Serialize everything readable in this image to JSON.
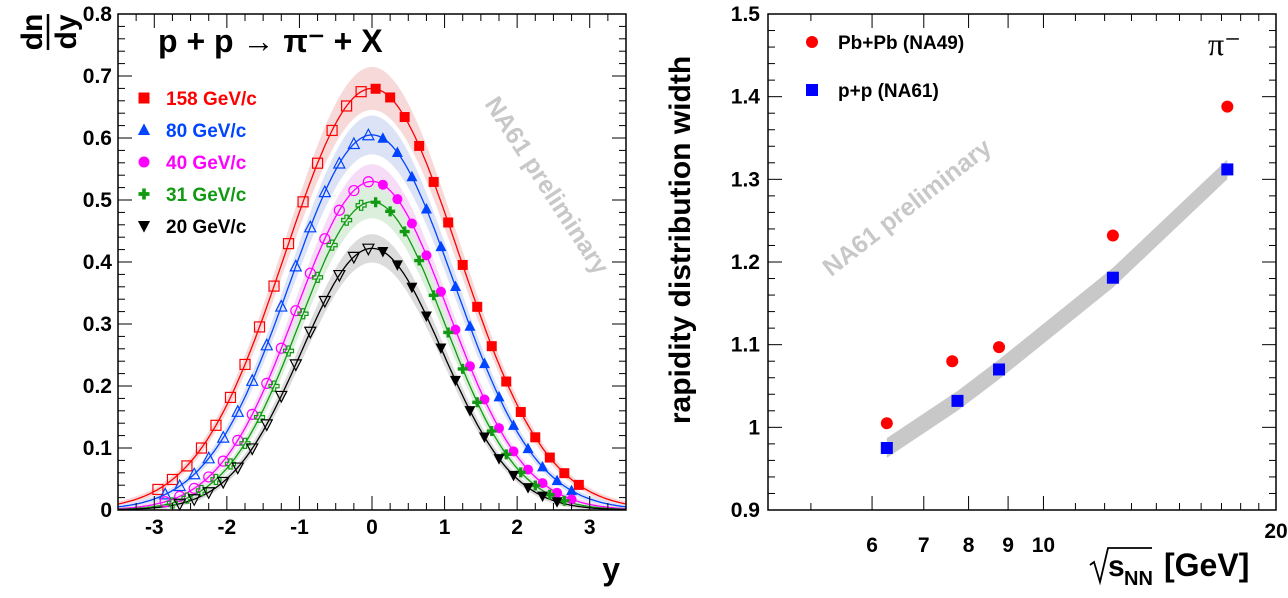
{
  "chart_data": [
    {
      "type": "line",
      "title": "p + p → π⁻ + X",
      "xlabel": "y",
      "ylabel": "dn/dy",
      "ylabel_num": "dn",
      "ylabel_den": "dy",
      "xlim": [
        -3.5,
        3.5
      ],
      "ylim": [
        0,
        0.8
      ],
      "x_ticks": [
        -3,
        -2,
        -1,
        0,
        1,
        2,
        3
      ],
      "y_ticks": [
        0,
        0.1,
        0.2,
        0.3,
        0.4,
        0.5,
        0.6,
        0.7,
        0.8
      ],
      "x_tick_labels": [
        "-3",
        "-2",
        "-1",
        "0",
        "1",
        "2",
        "3"
      ],
      "y_tick_labels": [
        "0",
        "0.1",
        "0.2",
        "0.3",
        "0.4",
        "0.5",
        "0.6",
        "0.7",
        "0.8"
      ],
      "watermark": "NA61 preliminary",
      "legend_position": "top-left",
      "series": [
        {
          "name": "158 GeV/c",
          "color": "#ff0000",
          "marker": "square",
          "peak": 0.68,
          "sigma": 1.2,
          "ymax": 3.0
        },
        {
          "name": "80 GeV/c",
          "color": "#0044ff",
          "marker": "triangle-up",
          "peak": 0.605,
          "sigma": 1.13,
          "ymax": 2.9
        },
        {
          "name": "40 GeV/c",
          "color": "#ff00ff",
          "marker": "circle",
          "peak": 0.53,
          "sigma": 1.05,
          "ymax": 2.9
        },
        {
          "name": "31 GeV/c",
          "color": "#119911",
          "marker": "cross",
          "peak": 0.497,
          "sigma": 1.0,
          "ymax": 2.8
        },
        {
          "name": "20 GeV/c",
          "color": "#000000",
          "marker": "triangle-down",
          "peak": 0.422,
          "sigma": 0.97,
          "ymax": 2.7
        }
      ]
    },
    {
      "type": "scatter",
      "title": "π⁻",
      "ylabel": "rapidity distribution width",
      "xlabel": "√s_NN [GeV]",
      "xlabel_parts": {
        "root": "s",
        "sub": "NN",
        "unit": "[GeV]"
      },
      "x_scale": "log",
      "xlim": [
        4.4,
        20
      ],
      "ylim": [
        0.9,
        1.5
      ],
      "x_ticks": [
        6,
        7,
        8,
        9,
        10,
        20
      ],
      "x_tick_labels": [
        "6",
        "7",
        "8",
        "9",
        "10",
        "20"
      ],
      "y_ticks": [
        0.9,
        1.0,
        1.1,
        1.2,
        1.3,
        1.4,
        1.5
      ],
      "y_tick_labels": [
        "0.9",
        "1",
        "1.1",
        "1.2",
        "1.3",
        "1.4",
        "1.5"
      ],
      "watermark": "NA61 preliminary",
      "legend_position": "top-left",
      "series": [
        {
          "name": "Pb+Pb (NA49)",
          "color": "#ff0000",
          "marker": "circle",
          "x": [
            6.27,
            7.62,
            8.76,
            12.3,
            17.3
          ],
          "y": [
            1.005,
            1.08,
            1.097,
            1.232,
            1.388
          ]
        },
        {
          "name": "p+p (NA61)",
          "color": "#0000ff",
          "marker": "square",
          "x": [
            6.27,
            7.74,
            8.76,
            12.3,
            17.3
          ],
          "y": [
            0.975,
            1.032,
            1.07,
            1.181,
            1.312
          ]
        }
      ]
    }
  ]
}
